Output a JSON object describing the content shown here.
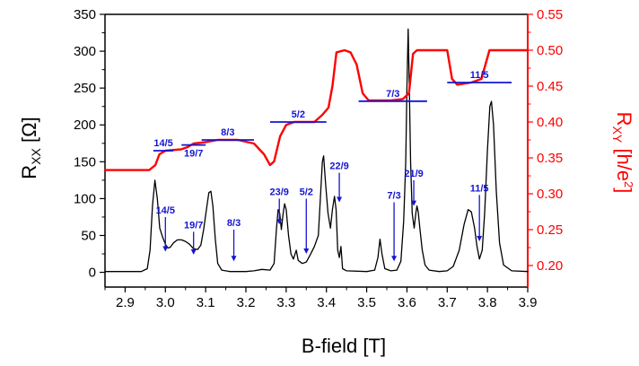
{
  "chart_data": {
    "type": "line",
    "title": "",
    "xlabel": "B-field [T]",
    "ylabel_left": {
      "main": "R",
      "sub": "XX",
      "unit": "[Ω]"
    },
    "ylabel_right": {
      "main": "R",
      "sub": "XY",
      "unit_pre": "[h/e",
      "unit_sup": "2",
      "unit_post": "]"
    },
    "xlim": [
      2.85,
      3.9
    ],
    "ylim_left": [
      -20,
      350
    ],
    "ylim_right": [
      0.17,
      0.55
    ],
    "xticks": [
      2.9,
      3.0,
      3.1,
      3.2,
      3.3,
      3.4,
      3.5,
      3.6,
      3.7,
      3.8,
      3.9
    ],
    "xtick_labels": [
      "2.9",
      "3.0",
      "3.1",
      "3.2",
      "3.3",
      "3.4",
      "3.5",
      "3.6",
      "3.7",
      "3.8",
      "3.9"
    ],
    "yticks_left": [
      0,
      50,
      100,
      150,
      200,
      250,
      300,
      350
    ],
    "ytick_labels_left": [
      "0",
      "50",
      "100",
      "150",
      "200",
      "250",
      "300",
      "350"
    ],
    "yticks_right": [
      0.2,
      0.25,
      0.3,
      0.35,
      0.4,
      0.45,
      0.5,
      0.55
    ],
    "ytick_labels_right": [
      "0.20",
      "0.25",
      "0.30",
      "0.35",
      "0.40",
      "0.45",
      "0.50",
      "0.55"
    ],
    "axis_colors": {
      "left": "#000000",
      "right": "#ff0000"
    },
    "series": [
      {
        "axis": "left",
        "color": "#000000",
        "points": [
          [
            2.85,
            1
          ],
          [
            2.9,
            1
          ],
          [
            2.94,
            1
          ],
          [
            2.955,
            5
          ],
          [
            2.962,
            30
          ],
          [
            2.968,
            90
          ],
          [
            2.974,
            125
          ],
          [
            2.98,
            100
          ],
          [
            2.986,
            60
          ],
          [
            2.993,
            48
          ],
          [
            3.0,
            38
          ],
          [
            3.006,
            33
          ],
          [
            3.012,
            34
          ],
          [
            3.02,
            40
          ],
          [
            3.03,
            44
          ],
          [
            3.04,
            44
          ],
          [
            3.05,
            42
          ],
          [
            3.06,
            38
          ],
          [
            3.07,
            32
          ],
          [
            3.08,
            31
          ],
          [
            3.088,
            37
          ],
          [
            3.095,
            58
          ],
          [
            3.102,
            85
          ],
          [
            3.108,
            108
          ],
          [
            3.113,
            110
          ],
          [
            3.118,
            90
          ],
          [
            3.124,
            45
          ],
          [
            3.13,
            12
          ],
          [
            3.14,
            3
          ],
          [
            3.16,
            1
          ],
          [
            3.2,
            1
          ],
          [
            3.22,
            2
          ],
          [
            3.24,
            4
          ],
          [
            3.26,
            3
          ],
          [
            3.27,
            12
          ],
          [
            3.276,
            60
          ],
          [
            3.28,
            85
          ],
          [
            3.284,
            80
          ],
          [
            3.288,
            58
          ],
          [
            3.292,
            78
          ],
          [
            3.296,
            93
          ],
          [
            3.3,
            85
          ],
          [
            3.306,
            50
          ],
          [
            3.312,
            25
          ],
          [
            3.318,
            18
          ],
          [
            3.325,
            30
          ],
          [
            3.33,
            16
          ],
          [
            3.34,
            12
          ],
          [
            3.35,
            14
          ],
          [
            3.36,
            24
          ],
          [
            3.37,
            35
          ],
          [
            3.38,
            50
          ],
          [
            3.386,
            110
          ],
          [
            3.39,
            150
          ],
          [
            3.393,
            158
          ],
          [
            3.398,
            120
          ],
          [
            3.404,
            80
          ],
          [
            3.41,
            60
          ],
          [
            3.415,
            85
          ],
          [
            3.42,
            103
          ],
          [
            3.424,
            85
          ],
          [
            3.428,
            30
          ],
          [
            3.432,
            20
          ],
          [
            3.436,
            35
          ],
          [
            3.44,
            5
          ],
          [
            3.45,
            2
          ],
          [
            3.5,
            1
          ],
          [
            3.52,
            3
          ],
          [
            3.528,
            20
          ],
          [
            3.533,
            45
          ],
          [
            3.538,
            25
          ],
          [
            3.545,
            5
          ],
          [
            3.56,
            2
          ],
          [
            3.575,
            3
          ],
          [
            3.585,
            15
          ],
          [
            3.592,
            70
          ],
          [
            3.597,
            150
          ],
          [
            3.6,
            250
          ],
          [
            3.603,
            330
          ],
          [
            3.606,
            250
          ],
          [
            3.609,
            150
          ],
          [
            3.613,
            80
          ],
          [
            3.618,
            60
          ],
          [
            3.622,
            80
          ],
          [
            3.625,
            90
          ],
          [
            3.628,
            82
          ],
          [
            3.632,
            60
          ],
          [
            3.638,
            30
          ],
          [
            3.645,
            10
          ],
          [
            3.655,
            3
          ],
          [
            3.68,
            1
          ],
          [
            3.7,
            2
          ],
          [
            3.715,
            8
          ],
          [
            3.73,
            30
          ],
          [
            3.742,
            65
          ],
          [
            3.752,
            85
          ],
          [
            3.76,
            82
          ],
          [
            3.768,
            60
          ],
          [
            3.774,
            35
          ],
          [
            3.78,
            18
          ],
          [
            3.787,
            30
          ],
          [
            3.793,
            80
          ],
          [
            3.8,
            165
          ],
          [
            3.806,
            225
          ],
          [
            3.81,
            232
          ],
          [
            3.815,
            200
          ],
          [
            3.822,
            110
          ],
          [
            3.83,
            40
          ],
          [
            3.84,
            10
          ],
          [
            3.86,
            2
          ],
          [
            3.9,
            1
          ]
        ]
      },
      {
        "axis": "right",
        "color": "#ff0000",
        "points": [
          [
            2.85,
            0.333
          ],
          [
            2.96,
            0.333
          ],
          [
            2.975,
            0.34
          ],
          [
            2.985,
            0.355
          ],
          [
            3.0,
            0.36
          ],
          [
            3.04,
            0.362
          ],
          [
            3.055,
            0.365
          ],
          [
            3.07,
            0.37
          ],
          [
            3.1,
            0.372
          ],
          [
            3.13,
            0.375
          ],
          [
            3.18,
            0.375
          ],
          [
            3.22,
            0.37
          ],
          [
            3.245,
            0.355
          ],
          [
            3.26,
            0.34
          ],
          [
            3.27,
            0.345
          ],
          [
            3.285,
            0.38
          ],
          [
            3.3,
            0.396
          ],
          [
            3.32,
            0.4
          ],
          [
            3.37,
            0.4
          ],
          [
            3.39,
            0.41
          ],
          [
            3.405,
            0.42
          ],
          [
            3.415,
            0.45
          ],
          [
            3.425,
            0.497
          ],
          [
            3.445,
            0.5
          ],
          [
            3.46,
            0.497
          ],
          [
            3.475,
            0.48
          ],
          [
            3.49,
            0.44
          ],
          [
            3.505,
            0.43
          ],
          [
            3.56,
            0.43
          ],
          [
            3.59,
            0.432
          ],
          [
            3.605,
            0.44
          ],
          [
            3.615,
            0.495
          ],
          [
            3.625,
            0.5
          ],
          [
            3.7,
            0.5
          ],
          [
            3.712,
            0.46
          ],
          [
            3.725,
            0.452
          ],
          [
            3.76,
            0.455
          ],
          [
            3.785,
            0.46
          ],
          [
            3.795,
            0.48
          ],
          [
            3.805,
            0.5
          ],
          [
            3.9,
            0.5
          ]
        ]
      }
    ],
    "plateau_markers": [
      {
        "label": "14/5",
        "x_start": 2.97,
        "x_end": 3.02,
        "y": 0.36,
        "label_pos": "above"
      },
      {
        "label": "19/7",
        "x_start": 3.04,
        "x_end": 3.1,
        "y": 0.368,
        "label_pos": "below"
      },
      {
        "label": "8/3",
        "x_start": 3.09,
        "x_end": 3.22,
        "y": 0.375,
        "label_pos": "above"
      },
      {
        "label": "5/2",
        "x_start": 3.26,
        "x_end": 3.4,
        "y": 0.4,
        "label_pos": "above"
      },
      {
        "label": "7/3",
        "x_start": 3.48,
        "x_end": 3.65,
        "y": 0.429,
        "label_pos": "above"
      },
      {
        "label": "11/5",
        "x_start": 3.7,
        "x_end": 3.86,
        "y": 0.455,
        "label_pos": "above"
      }
    ],
    "arrow_annotations": [
      {
        "label": "14/5",
        "x": 3.0,
        "y_top": 75,
        "y_tip": 28
      },
      {
        "label": "19/7",
        "x": 3.07,
        "y_top": 55,
        "y_tip": 24
      },
      {
        "label": "8/3",
        "x": 3.17,
        "y_top": 58,
        "y_tip": 15
      },
      {
        "label": "23/9",
        "x": 3.283,
        "y_top": 100,
        "y_tip": 65
      },
      {
        "label": "5/2",
        "x": 3.35,
        "y_top": 100,
        "y_tip": 25
      },
      {
        "label": "22/9",
        "x": 3.432,
        "y_top": 135,
        "y_tip": 95
      },
      {
        "label": "7/3",
        "x": 3.568,
        "y_top": 95,
        "y_tip": 15
      },
      {
        "label": "21/9",
        "x": 3.617,
        "y_top": 125,
        "y_tip": 90
      },
      {
        "label": "11/5",
        "x": 3.78,
        "y_top": 105,
        "y_tip": 42
      }
    ],
    "annotation_color": "#1414d2",
    "grid": false,
    "legend": "none"
  }
}
